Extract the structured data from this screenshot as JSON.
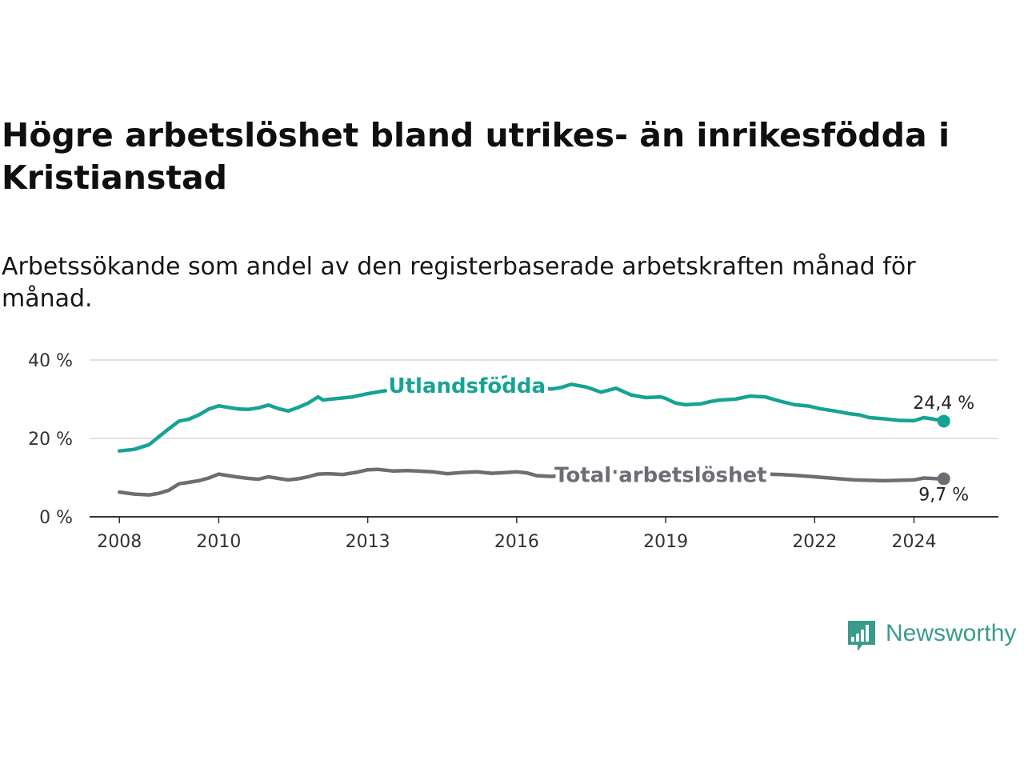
{
  "title": "Högre arbetslöshet bland utrikes- än inrikesfödda i Kristianstad",
  "subtitle": "Arbetssökande som andel av den registerbaserade arbetskraften månad för månad.",
  "brand": {
    "name": "Newsworthy",
    "color": "#3a9b8c"
  },
  "chart_data": {
    "type": "line",
    "title": "Högre arbetslöshet bland utrikes- än inrikesfödda i Kristianstad",
    "xlabel": "",
    "ylabel": "",
    "xlim": [
      2007.4,
      2025.7
    ],
    "ylim": [
      0,
      40
    ],
    "y_ticks": [
      0,
      20,
      40
    ],
    "y_tick_labels": [
      "0 %",
      "20 %",
      "40 %"
    ],
    "x_ticks": [
      2008,
      2010,
      2013,
      2016,
      2019,
      2022,
      2024
    ],
    "x_tick_labels": [
      "2008",
      "2010",
      "2013",
      "2016",
      "2019",
      "2022",
      "2024"
    ],
    "grid": true,
    "legend": "inline labels",
    "series": [
      {
        "name": "Utlandsfödda",
        "color": "#16a394",
        "end_label": "24,4 %",
        "x": [
          2008.0,
          2008.3,
          2008.6,
          2008.8,
          2009.0,
          2009.2,
          2009.4,
          2009.6,
          2009.8,
          2010.0,
          2010.2,
          2010.4,
          2010.6,
          2010.8,
          2011.0,
          2011.2,
          2011.4,
          2011.6,
          2011.8,
          2012.0,
          2012.1,
          2012.4,
          2012.7,
          2013.0,
          2013.5,
          2014.0,
          2014.5,
          2015.0,
          2015.3,
          2015.6,
          2015.9,
          2016.0,
          2016.2,
          2016.4,
          2016.7,
          2016.9,
          2017.1,
          2017.4,
          2017.7,
          2018.0,
          2018.3,
          2018.6,
          2018.9,
          2019.0,
          2019.2,
          2019.4,
          2019.7,
          2019.9,
          2020.1,
          2020.4,
          2020.7,
          2021.0,
          2021.3,
          2021.6,
          2021.9,
          2022.1,
          2022.4,
          2022.7,
          2022.9,
          2023.1,
          2023.4,
          2023.7,
          2024.0,
          2024.2,
          2024.5,
          2024.6
        ],
        "values": [
          16.8,
          17.2,
          18.4,
          20.5,
          22.5,
          24.4,
          24.9,
          26.0,
          27.5,
          28.3,
          27.9,
          27.5,
          27.4,
          27.8,
          28.5,
          27.6,
          27.0,
          27.9,
          29.0,
          30.6,
          29.8,
          30.2,
          30.6,
          31.4,
          32.5,
          33.6,
          34.2,
          34.3,
          35.0,
          35.3,
          35.8,
          34.6,
          33.6,
          32.8,
          32.6,
          33.0,
          33.8,
          33.1,
          31.8,
          32.8,
          31.1,
          30.4,
          30.6,
          30.2,
          29.0,
          28.6,
          28.8,
          29.4,
          29.8,
          30.0,
          30.8,
          30.6,
          29.5,
          28.6,
          28.2,
          27.6,
          27.0,
          26.3,
          26.0,
          25.3,
          25.0,
          24.6,
          24.5,
          25.3,
          24.7,
          24.4
        ]
      },
      {
        "name": "Total arbetslöshet",
        "color": "#6e6d74",
        "end_label": "9,7 %",
        "x": [
          2008.0,
          2008.3,
          2008.6,
          2008.8,
          2009.0,
          2009.2,
          2009.4,
          2009.6,
          2009.8,
          2010.0,
          2010.2,
          2010.4,
          2010.6,
          2010.8,
          2011.0,
          2011.2,
          2011.4,
          2011.6,
          2011.8,
          2012.0,
          2012.2,
          2012.5,
          2012.8,
          2013.0,
          2013.2,
          2013.5,
          2013.8,
          2014.0,
          2014.3,
          2014.6,
          2014.9,
          2015.2,
          2015.5,
          2015.8,
          2016.0,
          2016.2,
          2016.4,
          2016.7,
          2016.9,
          2017.2,
          2017.5,
          2017.8,
          2018.0,
          2018.4,
          2018.7,
          2019.0,
          2019.3,
          2019.6,
          2019.9,
          2020.2,
          2020.5,
          2020.8,
          2021.0,
          2021.3,
          2021.6,
          2021.9,
          2022.2,
          2022.5,
          2022.8,
          2023.1,
          2023.4,
          2023.7,
          2024.0,
          2024.2,
          2024.5,
          2024.6
        ],
        "values": [
          6.3,
          5.8,
          5.6,
          6.0,
          6.8,
          8.4,
          8.8,
          9.2,
          9.9,
          10.9,
          10.5,
          10.1,
          9.8,
          9.6,
          10.2,
          9.8,
          9.4,
          9.7,
          10.2,
          10.9,
          11.0,
          10.8,
          11.4,
          12.0,
          12.1,
          11.7,
          11.8,
          11.7,
          11.5,
          11.0,
          11.3,
          11.5,
          11.1,
          11.3,
          11.5,
          11.2,
          10.5,
          10.3,
          10.5,
          10.9,
          11.1,
          11.3,
          11.5,
          11.1,
          10.8,
          11.0,
          10.8,
          10.7,
          10.6,
          10.9,
          11.2,
          11.0,
          10.9,
          10.8,
          10.6,
          10.3,
          10.0,
          9.7,
          9.4,
          9.3,
          9.2,
          9.3,
          9.4,
          9.9,
          9.7,
          9.7
        ]
      }
    ]
  }
}
